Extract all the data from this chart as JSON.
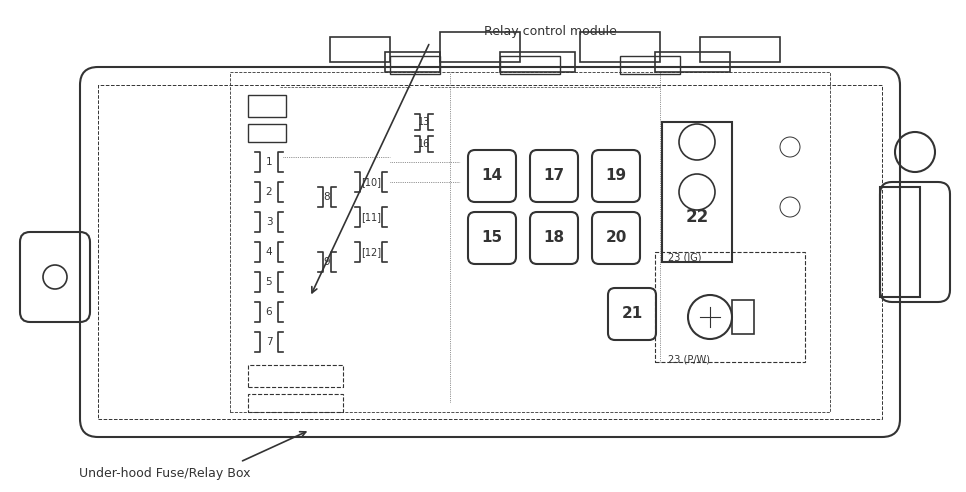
{
  "bg_color": "#ffffff",
  "line_color": "#333333",
  "title_relay": "Relay control module",
  "title_underhood": "Under-hood Fuse/Relay Box",
  "fuse_labels_bracket": [
    "1",
    "2",
    "3",
    "4",
    "5",
    "6",
    "7"
  ],
  "fuse_labels_8_9": [
    "8",
    "9"
  ],
  "fuse_labels_10_12": [
    "10",
    "11",
    "12"
  ],
  "fuse_labels_13_16": [
    "13",
    "16"
  ],
  "fuse_labels_large": [
    "14",
    "15",
    "17",
    "18",
    "19",
    "20",
    "21"
  ],
  "fuse_label_22": "22",
  "fuse_label_23ig": "23 (IG)",
  "fuse_label_23pw": "23 (P/W)"
}
